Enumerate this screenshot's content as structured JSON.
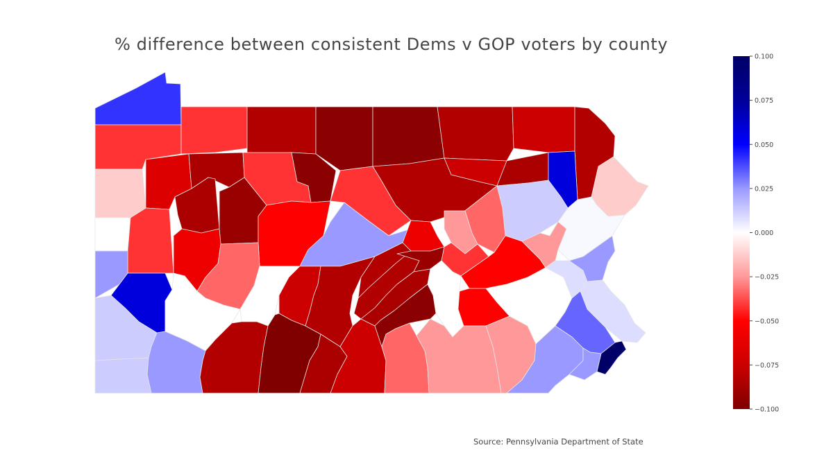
{
  "title": "% difference between consistent Dems v GOP voters by county",
  "source": "Source: Pennsylvania Department of State",
  "colorbar": {
    "ticks": [
      "0.100",
      "0.075",
      "0.050",
      "0.025",
      "0.000",
      "−0.025",
      "−0.050",
      "−0.075",
      "−0.100"
    ],
    "tick_values": [
      0.1,
      0.075,
      0.05,
      0.025,
      0,
      -0.025,
      -0.05,
      -0.075,
      -0.1
    ],
    "range": [
      -0.1,
      0.1
    ],
    "colors": {
      "top": "#000066",
      "upper": "#0000ff",
      "mid": "#ffffff",
      "lower": "#ff0000",
      "bottom": "#7f0000"
    }
  },
  "map_colors": {
    "background": "#ffffff",
    "county_border": "#e6e6e6"
  }
}
